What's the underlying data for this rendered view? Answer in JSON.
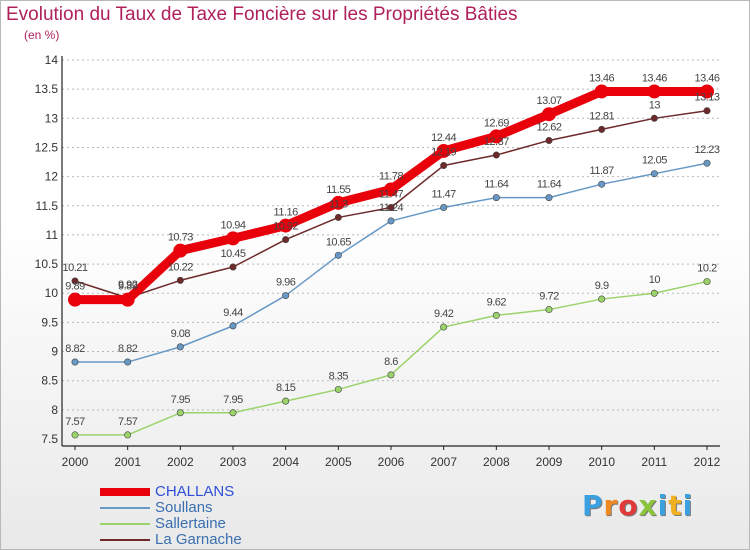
{
  "title": "Evolution du Taux de Taxe Foncière sur les Propriétés Bâties",
  "subtitle": "(en %)",
  "logo_text": "Proxiti",
  "colors": {
    "title": "#b0205a",
    "grid": "#b9b9b9",
    "axis_text": "#333333"
  },
  "chart_data": {
    "type": "line",
    "title": "Evolution du Taux de Taxe Foncière sur les Propriétés Bâties",
    "ylabel": "(en %)",
    "xlabel": "",
    "x": [
      "2000",
      "2001",
      "2002",
      "2003",
      "2004",
      "2005",
      "2006",
      "2007",
      "2008",
      "2009",
      "2010",
      "2011",
      "2012"
    ],
    "ylim": [
      7.5,
      14
    ],
    "yticks": [
      "7.5",
      "8",
      "8.5",
      "9",
      "9.5",
      "10",
      "10.5",
      "11",
      "11.5",
      "12",
      "12.5",
      "13",
      "13.5",
      "14"
    ],
    "grid": "horizontal dashed",
    "legend_position": "bottom-left",
    "series": [
      {
        "name": "CHALLANS",
        "color": "#e8000b",
        "emphasis": true,
        "values": [
          9.89,
          9.89,
          10.73,
          10.94,
          11.16,
          11.55,
          11.78,
          12.44,
          12.69,
          13.07,
          13.46,
          13.46,
          13.46
        ],
        "labels": [
          "9.89",
          "9.89",
          "10.73",
          "10.94",
          "11.16",
          "11.55",
          "11.78",
          "12.44",
          "12.69",
          "13.07",
          "13.46",
          "13.46",
          "13.46"
        ]
      },
      {
        "name": "Soullans",
        "color": "#6899c6",
        "values": [
          8.82,
          8.82,
          9.08,
          9.44,
          9.96,
          10.65,
          11.24,
          11.47,
          11.64,
          11.64,
          11.87,
          12.05,
          12.23
        ],
        "labels": [
          "8.82",
          "8.82",
          "9.08",
          "9.44",
          "9.96",
          "10.65",
          "11.24",
          "11.47",
          "11.64",
          "11.64",
          "11.87",
          "12.05",
          "12.23"
        ]
      },
      {
        "name": "Sallertaine",
        "color": "#9bd36b",
        "values": [
          7.57,
          7.57,
          7.95,
          7.95,
          8.15,
          8.35,
          8.6,
          9.42,
          9.62,
          9.72,
          9.9,
          10,
          10.2
        ],
        "labels": [
          "7.57",
          "7.57",
          "7.95",
          "7.95",
          "8.15",
          "8.35",
          "8.6",
          "9.42",
          "9.62",
          "9.72",
          "9.9",
          "10",
          "10.2"
        ]
      },
      {
        "name": "La Garnache",
        "color": "#6e2a2a",
        "values": [
          10.21,
          9.92,
          10.22,
          10.45,
          10.92,
          11.3,
          11.47,
          12.19,
          12.37,
          12.62,
          12.81,
          13,
          13.13
        ],
        "labels": [
          "10.21",
          "9.92",
          "10.22",
          "10.45",
          "10.92",
          "11.3",
          "11.47",
          "12.19",
          "12.37",
          "12.62",
          "12.81",
          "13",
          "13.13"
        ]
      }
    ]
  }
}
